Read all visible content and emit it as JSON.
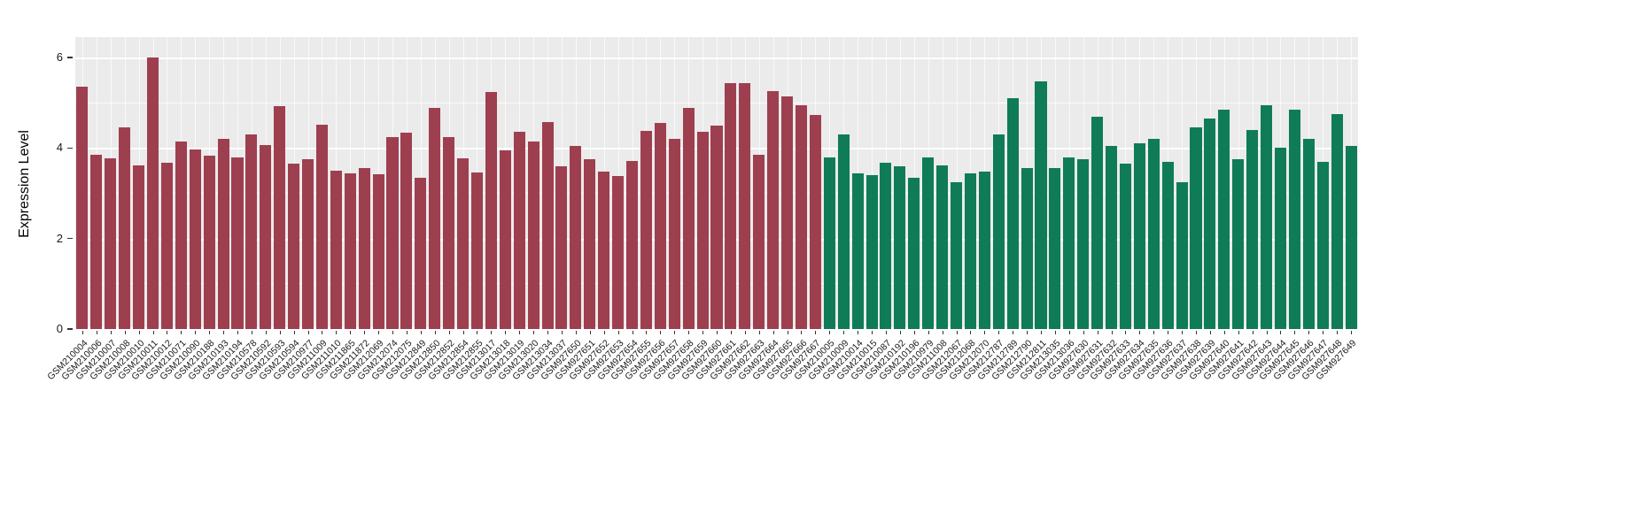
{
  "figure": {
    "background": "#ffffff",
    "panel_background": "#ebebeb",
    "grid_color": "#ffffff"
  },
  "chart_data": {
    "type": "bar",
    "title": "",
    "xlabel": "",
    "ylabel": "Expression Level",
    "ylim": [
      0,
      6.45
    ],
    "yticks": [
      0,
      2,
      4,
      6
    ],
    "yticks_minor": [
      1,
      3,
      5
    ],
    "legend": "none",
    "grid": "on",
    "group_split_index": 53,
    "group_colors": [
      "#9e3f50",
      "#0f7c57"
    ],
    "categories": [
      "GSM210004",
      "GSM210006",
      "GSM210007",
      "GSM210008",
      "GSM210010",
      "GSM210011",
      "GSM210012",
      "GSM210071",
      "GSM210090",
      "GSM210188",
      "GSM210193",
      "GSM210194",
      "GSM210578",
      "GSM210592",
      "GSM210593",
      "GSM210594",
      "GSM210977",
      "GSM211009",
      "GSM211010",
      "GSM211865",
      "GSM211872",
      "GSM212069",
      "GSM212074",
      "GSM212075",
      "GSM212849",
      "GSM212850",
      "GSM212852",
      "GSM212854",
      "GSM212855",
      "GSM213017",
      "GSM213018",
      "GSM213019",
      "GSM213020",
      "GSM213034",
      "GSM213037",
      "GSM927650",
      "GSM927651",
      "GSM927652",
      "GSM927653",
      "GSM927654",
      "GSM927655",
      "GSM927656",
      "GSM927657",
      "GSM927658",
      "GSM927659",
      "GSM927660",
      "GSM927661",
      "GSM927662",
      "GSM927663",
      "GSM927664",
      "GSM927665",
      "GSM927666",
      "GSM927667",
      "GSM210005",
      "GSM210009",
      "GSM210014",
      "GSM210015",
      "GSM210087",
      "GSM210192",
      "GSM210196",
      "GSM210979",
      "GSM211008",
      "GSM212067",
      "GSM212068",
      "GSM212070",
      "GSM212787",
      "GSM212789",
      "GSM212790",
      "GSM212811",
      "GSM213035",
      "GSM213036",
      "GSM927630",
      "GSM927631",
      "GSM927632",
      "GSM927633",
      "GSM927634",
      "GSM927635",
      "GSM927636",
      "GSM927637",
      "GSM927638",
      "GSM927639",
      "GSM927640",
      "GSM927641",
      "GSM927642",
      "GSM927643",
      "GSM927644",
      "GSM927645",
      "GSM927646",
      "GSM927647",
      "GSM927648",
      "GSM927649"
    ],
    "values": [
      5.35,
      3.85,
      3.78,
      4.45,
      3.62,
      6.0,
      3.68,
      4.15,
      3.97,
      3.83,
      4.2,
      3.8,
      4.3,
      4.07,
      4.93,
      3.65,
      3.76,
      4.52,
      3.5,
      3.45,
      3.55,
      3.42,
      4.25,
      4.33,
      3.35,
      4.88,
      4.24,
      3.78,
      3.46,
      5.23,
      3.95,
      4.36,
      4.15,
      4.57,
      3.6,
      4.05,
      3.75,
      3.48,
      3.38,
      3.72,
      4.38,
      4.55,
      4.2,
      4.88,
      4.35,
      4.5,
      5.44,
      5.43,
      3.85,
      5.25,
      5.15,
      4.95,
      4.73,
      3.8,
      4.3,
      3.45,
      3.4,
      3.67,
      3.6,
      3.35,
      3.8,
      3.62,
      3.25,
      3.45,
      3.47,
      4.3,
      5.1,
      3.55,
      5.48,
      3.55,
      3.8,
      3.75,
      4.7,
      4.05,
      3.65,
      4.1,
      4.2,
      3.7,
      3.25,
      4.45,
      4.65,
      4.85,
      3.75,
      4.4,
      4.95,
      4.0,
      4.85,
      4.2,
      3.7,
      4.75,
      4.05
    ]
  }
}
